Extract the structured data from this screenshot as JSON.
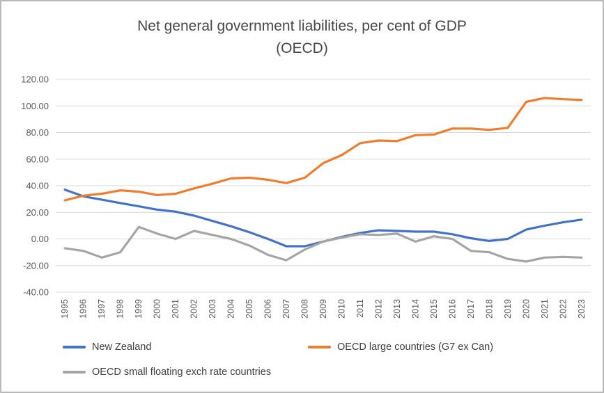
{
  "chart_data": {
    "type": "line",
    "title": "Net general government liabilities, per cent of GDP (OECD)",
    "title_display": "Net general government liabilities, per cent of GDP\n(OECD)",
    "xlabel": "",
    "ylabel": "",
    "categories": [
      1995,
      1996,
      1997,
      1998,
      1999,
      2000,
      2001,
      2002,
      2003,
      2004,
      2005,
      2006,
      2007,
      2008,
      2009,
      2010,
      2011,
      2012,
      2013,
      2014,
      2015,
      2016,
      2017,
      2018,
      2019,
      2020,
      2021,
      2022,
      2023
    ],
    "series": [
      {
        "id": "new-zealand",
        "name": "New Zealand",
        "color": "#4472C4",
        "values": [
          37,
          32,
          29.5,
          27,
          24.5,
          22,
          20.5,
          17.5,
          13.5,
          9.5,
          5,
          0,
          -5.5,
          -5.5,
          -2,
          1.5,
          4.5,
          6.5,
          6,
          5.5,
          5.5,
          3.5,
          0.5,
          -1.5,
          0,
          7,
          10,
          12.5,
          14.5
        ]
      },
      {
        "id": "oecd-large-countries",
        "name": "OECD large countries (G7 ex Can)",
        "color": "#ED7D31",
        "values": [
          29,
          32.5,
          34,
          36.5,
          35.5,
          33,
          34,
          38,
          41.5,
          45.5,
          46,
          44.5,
          42,
          46,
          57,
          63,
          72,
          74,
          73.5,
          78,
          78.5,
          83,
          83,
          82,
          83.5,
          103,
          106,
          105,
          104.5
        ]
      },
      {
        "id": "oecd-small-floating",
        "name": "OECD small floating exch rate countries",
        "color": "#A5A5A5",
        "values": [
          -7,
          -9,
          -14,
          -10,
          9,
          4,
          0,
          6,
          3,
          0,
          -5,
          -12,
          -16,
          -8,
          -2,
          1,
          3.5,
          3,
          4,
          -2,
          2,
          0,
          -9,
          -10,
          -15,
          -17,
          -14,
          -13.5,
          -14
        ]
      }
    ],
    "ylim": [
      -40,
      120
    ],
    "y_ticks": [
      120,
      100,
      80,
      60,
      40,
      20,
      0,
      -20,
      -40
    ],
    "y_tick_format": "0.00",
    "grid": true,
    "grid_color": "#D9D9D9",
    "axis_text_color": "#595959",
    "legend_position": "bottom-left"
  }
}
